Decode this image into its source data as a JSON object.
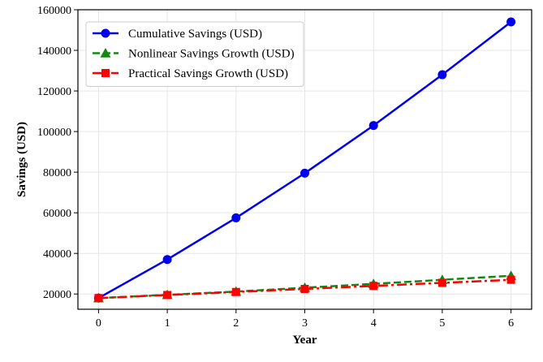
{
  "chart_data": {
    "type": "line",
    "title": "",
    "xlabel": "Year",
    "ylabel": "Savings (USD)",
    "x": [
      0,
      1,
      2,
      3,
      4,
      5,
      6
    ],
    "xlim": [
      -0.3,
      6.3
    ],
    "ylim": [
      12500,
      160000
    ],
    "xticks": [
      0,
      1,
      2,
      3,
      4,
      5,
      6
    ],
    "yticks": [
      20000,
      40000,
      60000,
      80000,
      100000,
      120000,
      140000,
      160000
    ],
    "grid": true,
    "legend_position": "top-left",
    "series": [
      {
        "name": "Cumulative Savings (USD)",
        "values": [
          18000,
          37000,
          57500,
          79500,
          103000,
          128000,
          154000
        ],
        "color": "#0000ee",
        "line_style": "solid",
        "marker": "circle"
      },
      {
        "name": "Nonlinear Savings Growth (USD)",
        "values": [
          18000,
          19600,
          21200,
          23100,
          25000,
          27000,
          29000
        ],
        "color": "#118811",
        "line_style": "dashed",
        "marker": "triangle"
      },
      {
        "name": "Practical Savings Growth (USD)",
        "values": [
          18000,
          19500,
          21000,
          22500,
          24000,
          25500,
          27000
        ],
        "color": "#ff0000",
        "line_style": "dashdot",
        "marker": "square"
      }
    ]
  }
}
